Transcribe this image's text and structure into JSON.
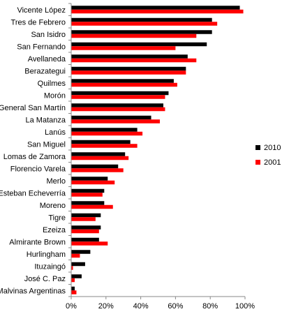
{
  "chart_data": {
    "type": "bar",
    "orientation": "horizontal",
    "categories": [
      "Vicente López",
      "Tres de Febrero",
      "San Isidro",
      "San Fernando",
      "Avellaneda",
      "Berazategui",
      "Quilmes",
      "Morón",
      "General San Martín",
      "La Matanza",
      "Lanús",
      "San Miguel",
      "Lomas de Zamora",
      "Florencio Varela",
      "Merlo",
      "Esteban Echeverría",
      "Moreno",
      "Tigre",
      "Ezeiza",
      "Almirante Brown",
      "Hurlingham",
      "Ituzaingó",
      "José C. Paz",
      "Malvinas Argentinas"
    ],
    "series": [
      {
        "name": "2010",
        "color": "#000000",
        "values": [
          97,
          81,
          81,
          78,
          67,
          66,
          59,
          56,
          53,
          46,
          38,
          34,
          31,
          27,
          21,
          19,
          19,
          17,
          17,
          16,
          11,
          8,
          6,
          2
        ]
      },
      {
        "name": "2001",
        "color": "#ff0000",
        "values": [
          99,
          84,
          72,
          60,
          72,
          66,
          61,
          54,
          54,
          51,
          41,
          38,
          33,
          30,
          25,
          18,
          24,
          14,
          16,
          21,
          5,
          1,
          2,
          3
        ]
      }
    ],
    "xlim": [
      0,
      100
    ],
    "x_ticks": [
      "0%",
      "20%",
      "40%",
      "60%",
      "80%",
      "100%"
    ],
    "legend_position": "right",
    "grid": false
  }
}
